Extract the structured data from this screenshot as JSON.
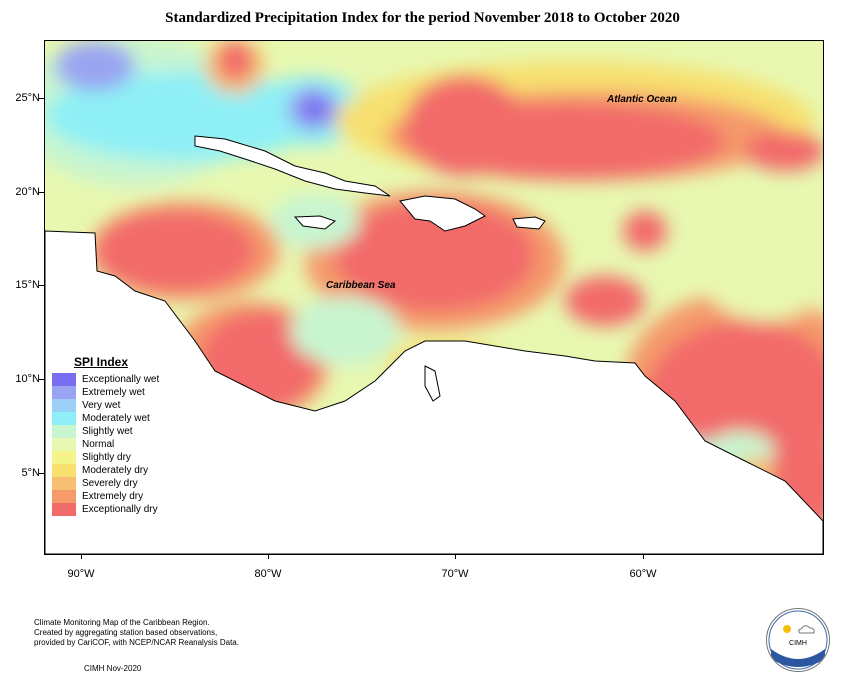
{
  "title": "Standardized Precipitation Index for the period November 2018 to October 2020",
  "lat_labels": [
    "25°N",
    "20°N",
    "15°N",
    "10°N",
    "5°N"
  ],
  "lon_labels": [
    "90°W",
    "80°W",
    "70°W",
    "60°W"
  ],
  "map_labels": {
    "ocean": "Atlantic Ocean",
    "sea": "Caribbean Sea"
  },
  "legend": {
    "title": "SPI Index",
    "items": [
      {
        "label": "Exceptionally wet",
        "color": "#7a6ef0"
      },
      {
        "label": "Extremely wet",
        "color": "#9aa4f2"
      },
      {
        "label": "Very wet",
        "color": "#9cd0f8"
      },
      {
        "label": "Moderately wet",
        "color": "#8ef0f6"
      },
      {
        "label": "Slightly wet",
        "color": "#c8f5d0"
      },
      {
        "label": "Normal",
        "color": "#e8f8b0"
      },
      {
        "label": "Slightly dry",
        "color": "#f4f48a"
      },
      {
        "label": "Moderately dry",
        "color": "#f7e070"
      },
      {
        "label": "Severely dry",
        "color": "#f7c070"
      },
      {
        "label": "Extremely dry",
        "color": "#f59a6a"
      },
      {
        "label": "Exceptionally dry",
        "color": "#f26b6b"
      }
    ]
  },
  "footer": {
    "line1": "Climate Monitoring Map of the Caribbean Region.",
    "line2": "Created by aggregating station based observations,",
    "line3": "provided by CariCOF, with NCEP/NCAR Reanalysis Data.",
    "date": "CIMH Nov-2020"
  },
  "logo": {
    "name": "CIMH"
  }
}
